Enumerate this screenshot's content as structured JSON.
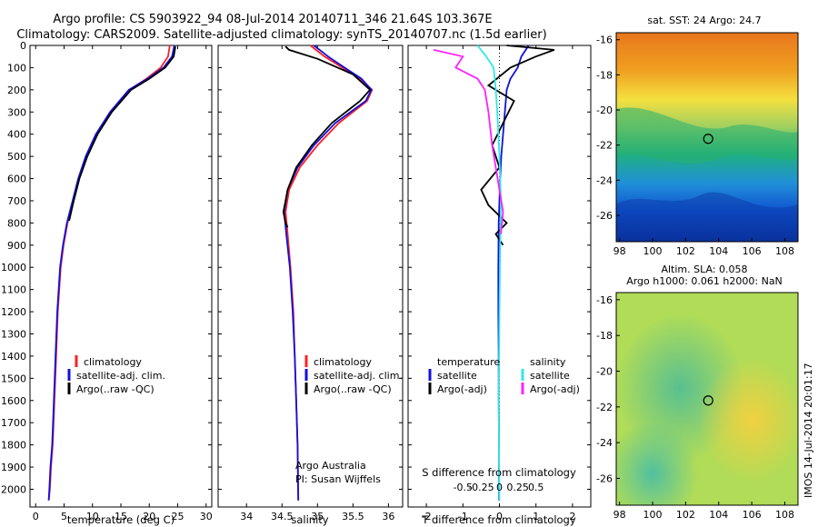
{
  "header": {
    "title_line1": "Argo profile: CS 5903922_94 08-Jul-2014 20140711_346 21.64S 103.367E",
    "title_line2": "Climatology: CARS2009. Satellite-adjusted climatology: synTS_20140707.nc (1.5d earlier)"
  },
  "colors": {
    "climatology": "#ff2020",
    "satellite": "#1010e0",
    "argo": "#000000",
    "sal_satellite": "#30e8e8",
    "sal_argo": "#ff20ff"
  },
  "chart_data": [
    {
      "type": "line",
      "id": "temperature",
      "xlabel": "temperature (deg C)",
      "ylabel": "",
      "xlim": [
        -1,
        31
      ],
      "ylim": [
        2080,
        0
      ],
      "xticks": [
        0,
        5,
        10,
        15,
        20,
        25,
        30
      ],
      "yticks": [
        0,
        100,
        200,
        300,
        400,
        500,
        600,
        700,
        800,
        900,
        1000,
        1100,
        1200,
        1300,
        1400,
        1500,
        1600,
        1700,
        1800,
        1900,
        2000
      ],
      "legend": [
        "climatology",
        "satellite-adj. clim.",
        "Argo(..raw -QC)"
      ],
      "series": [
        {
          "name": "climatology",
          "x": [
            23.6,
            23.3,
            22.0,
            19.5,
            16.5,
            13.3,
            10.8,
            9.0,
            7.6,
            6.6,
            5.6,
            4.9,
            4.4,
            3.9,
            3.6,
            3.3,
            3.0,
            2.7,
            2.5,
            2.3
          ],
          "y": [
            0,
            50,
            100,
            150,
            200,
            300,
            400,
            500,
            600,
            700,
            800,
            900,
            1000,
            1200,
            1400,
            1600,
            1800,
            1900,
            2000,
            2050
          ]
        },
        {
          "name": "satellite-adj. clim.",
          "x": [
            24.4,
            24.0,
            22.5,
            19.7,
            16.4,
            13.1,
            10.6,
            8.8,
            7.5,
            6.5,
            5.5,
            4.8,
            4.3,
            3.8,
            3.5,
            3.2,
            2.9,
            2.6,
            2.4,
            2.3
          ],
          "y": [
            0,
            50,
            100,
            150,
            200,
            300,
            400,
            500,
            600,
            700,
            800,
            900,
            1000,
            1200,
            1400,
            1600,
            1800,
            1900,
            2000,
            2050
          ]
        },
        {
          "name": "Argo(..raw -QC)",
          "x": [
            24.6,
            24.3,
            22.8,
            20.0,
            16.8,
            13.4,
            10.9,
            9.1,
            7.7,
            6.7,
            5.9
          ],
          "y": [
            5,
            50,
            100,
            150,
            200,
            300,
            400,
            500,
            600,
            700,
            790
          ]
        }
      ]
    },
    {
      "type": "line",
      "id": "salinity",
      "xlabel": "salinity",
      "xlim": [
        33.6,
        36.2
      ],
      "ylim": [
        2080,
        0
      ],
      "xticks": [
        34,
        34.5,
        35,
        35.5,
        36
      ],
      "legend": [
        "climatology",
        "satellite-adj. clim.",
        "Argo(..raw -QC)"
      ],
      "annotations": [
        "Argo Australia",
        "PI: Susan Wijffels"
      ],
      "series": [
        {
          "name": "climatology",
          "x": [
            34.9,
            35.1,
            35.35,
            35.6,
            35.77,
            35.7,
            35.3,
            35.0,
            34.75,
            34.6,
            34.55,
            34.58,
            34.62,
            34.66,
            34.68,
            34.7,
            34.72,
            34.73
          ],
          "y": [
            0,
            50,
            100,
            150,
            200,
            250,
            350,
            450,
            550,
            650,
            750,
            850,
            1000,
            1200,
            1400,
            1600,
            1800,
            2050
          ]
        },
        {
          "name": "satellite-adj. clim.",
          "x": [
            34.95,
            35.15,
            35.38,
            35.62,
            35.76,
            35.68,
            35.25,
            34.95,
            34.72,
            34.58,
            34.53,
            34.56,
            34.61,
            34.65,
            34.68,
            34.7,
            34.72,
            34.73
          ],
          "y": [
            0,
            50,
            100,
            150,
            200,
            250,
            350,
            450,
            550,
            650,
            750,
            850,
            1000,
            1200,
            1400,
            1600,
            1800,
            2050
          ]
        },
        {
          "name": "Argo(..raw -QC)",
          "x": [
            34.55,
            34.6,
            35.0,
            35.5,
            35.74,
            35.6,
            35.2,
            34.92,
            34.7,
            34.58,
            34.52,
            34.55,
            34.58
          ],
          "y": [
            5,
            20,
            60,
            130,
            200,
            250,
            350,
            450,
            550,
            650,
            750,
            800,
            820
          ]
        }
      ]
    },
    {
      "type": "line",
      "id": "difference",
      "xlabel": "T difference from climatology",
      "xlabel_top": "S difference from climatology",
      "xlim": [
        -2.5,
        2.5
      ],
      "ylim": [
        2080,
        0
      ],
      "xticks": [
        -2,
        -1,
        0,
        1,
        2
      ],
      "xticks_top": [
        -0.5,
        -0.25,
        0,
        0.25,
        0.5
      ],
      "legend_temperature": [
        "temperature",
        "satellite",
        "Argo(-adj)"
      ],
      "legend_salinity": [
        "salinity",
        "satellite",
        "Argo(-adj)"
      ],
      "series": [
        {
          "name": "T satellite",
          "x": [
            0.8,
            0.6,
            0.5,
            0.3,
            0.2,
            0.15,
            0.1,
            0.05,
            0.02,
            0.0,
            -0.02,
            -0.03,
            -0.03,
            -0.02,
            -0.02,
            -0.01,
            -0.01
          ],
          "y": [
            0,
            50,
            100,
            150,
            200,
            300,
            400,
            500,
            600,
            700,
            800,
            1000,
            1200,
            1400,
            1600,
            1800,
            2050
          ]
        },
        {
          "name": "T Argo(-adj)",
          "x": [
            0.2,
            1.5,
            1.0,
            0.3,
            -0.3,
            0.4,
            0.1,
            -0.2,
            0.0,
            -0.5,
            -0.3,
            0.2,
            -0.1,
            0.1
          ],
          "y": [
            0,
            20,
            50,
            100,
            180,
            250,
            350,
            450,
            550,
            650,
            720,
            800,
            850,
            900
          ]
        },
        {
          "name": "S satellite",
          "x": [
            -0.3,
            -0.18,
            -0.08,
            -0.05,
            -0.03,
            0.0,
            0.02,
            0.01,
            0.0,
            -0.01,
            0.0
          ],
          "y": [
            0,
            50,
            100,
            200,
            300,
            500,
            700,
            900,
            1200,
            1600,
            2050
          ]
        },
        {
          "name": "S Argo(-adj)",
          "x": [
            -0.9,
            -0.5,
            -0.6,
            -0.3,
            -0.2,
            -0.15,
            -0.1,
            -0.05,
            0.0,
            0.05,
            0.02
          ],
          "y": [
            20,
            50,
            100,
            150,
            200,
            300,
            450,
            550,
            650,
            750,
            850
          ]
        }
      ]
    }
  ],
  "maps": [
    {
      "title_line1": "sat. SST: 24 Argo: 24.7",
      "title_line2": "",
      "xticks": [
        98,
        100,
        102,
        104,
        106,
        108
      ],
      "yticks": [
        -16,
        -18,
        -20,
        -22,
        -24,
        -26
      ],
      "marker": [
        103.367,
        -21.64
      ]
    },
    {
      "title_line1": "Altim. SLA: 0.058",
      "title_line2": "Argo h1000: 0.061 h2000: NaN",
      "xticks": [
        98,
        100,
        102,
        104,
        106,
        108
      ],
      "yticks": [
        -16,
        -18,
        -20,
        -22,
        -24,
        -26
      ],
      "marker": [
        103.367,
        -21.64
      ]
    }
  ],
  "side_label": "IMOS 14-Jul-2014 20:01:17"
}
